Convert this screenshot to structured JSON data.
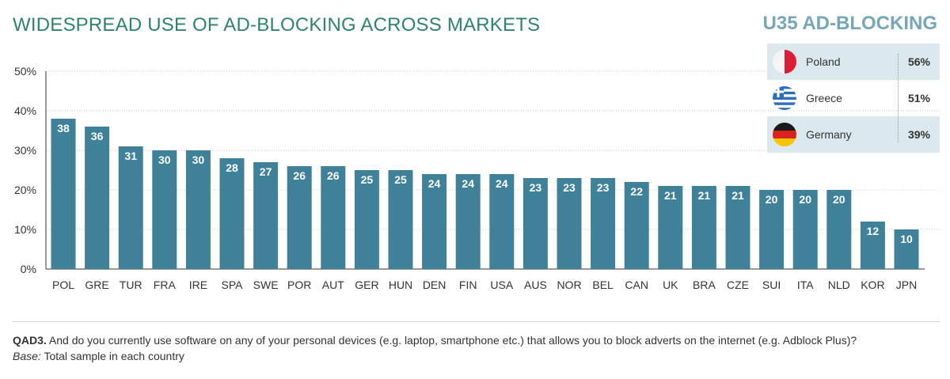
{
  "header": {
    "title": "WIDESPREAD USE OF AD-BLOCKING ACROSS MARKETS",
    "side_title": "U35 AD-BLOCKING"
  },
  "chart_data": {
    "type": "bar",
    "title": "WIDESPREAD USE OF AD-BLOCKING ACROSS MARKETS",
    "xlabel": "",
    "ylabel": "",
    "categories": [
      "POL",
      "GRE",
      "TUR",
      "FRA",
      "IRE",
      "SPA",
      "SWE",
      "POR",
      "AUT",
      "GER",
      "HUN",
      "DEN",
      "FIN",
      "USA",
      "AUS",
      "NOR",
      "BEL",
      "CAN",
      "UK",
      "BRA",
      "CZE",
      "SUI",
      "ITA",
      "NLD",
      "KOR",
      "JPN"
    ],
    "values": [
      38,
      36,
      31,
      30,
      30,
      28,
      27,
      26,
      26,
      25,
      25,
      24,
      24,
      24,
      23,
      23,
      23,
      22,
      21,
      21,
      21,
      20,
      20,
      20,
      12,
      10
    ],
    "ylim": [
      0,
      50
    ],
    "yticks": [
      "0%",
      "10%",
      "20%",
      "30%",
      "40%",
      "50%"
    ],
    "grid": true,
    "bar_color": "#3f8199",
    "label_color": "#ffffff"
  },
  "u35_panel": {
    "rows": [
      {
        "country": "Poland",
        "value": "56%",
        "flag": "poland-flag-icon",
        "shaded": true
      },
      {
        "country": "Greece",
        "value": "51%",
        "flag": "greece-flag-icon",
        "shaded": false
      },
      {
        "country": "Germany",
        "value": "39%",
        "flag": "germany-flag-icon",
        "shaded": true
      }
    ]
  },
  "footnote": {
    "question_code": "QAD3.",
    "question_text": " And do you currently use software on any of your personal devices (e.g. laptop, smartphone etc.) that allows you to block adverts on the internet (e.g. Adblock Plus)?",
    "base_label": "Base:",
    "base_text": " Total sample in each country"
  },
  "colors": {
    "title": "#2e8566",
    "side_title": "#74a7b8",
    "bar": "#3f8199",
    "panel_shade": "#dbe8ee"
  }
}
